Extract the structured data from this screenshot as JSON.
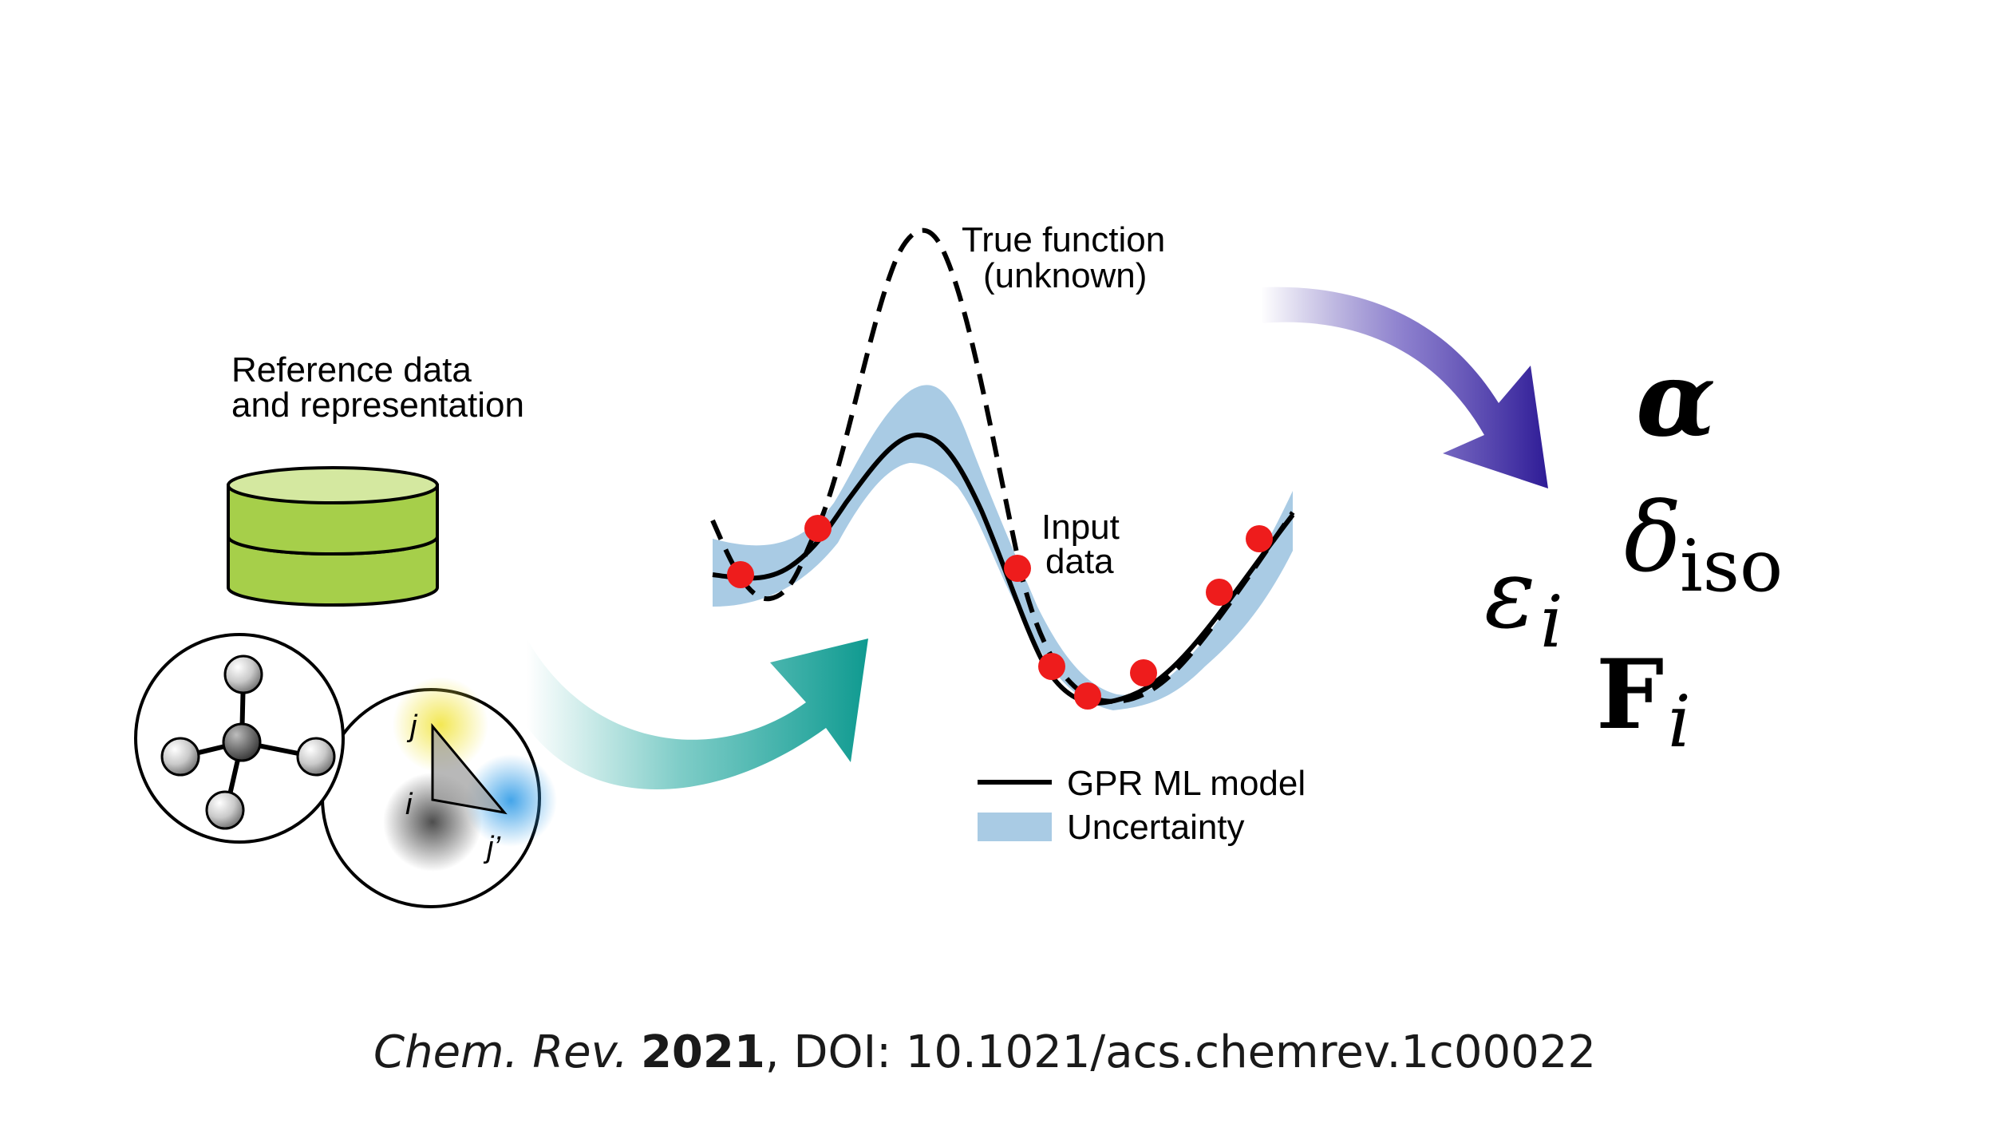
{
  "labels": {
    "reference_line1": "Reference data",
    "reference_line2": "and representation",
    "true_function_line1": "True function",
    "true_function_line2": "(unknown)",
    "input_data_line1": "Input",
    "input_data_line2": "data",
    "legend_model": "GPR ML model",
    "legend_uncertainty": "Uncertainty",
    "atom_j": "j",
    "atom_i": "i",
    "atom_jprime": "j’"
  },
  "properties": {
    "alpha": "α",
    "delta": "δ",
    "delta_sub": "iso",
    "epsilon": "ε",
    "epsilon_sub": "i",
    "force": "F",
    "force_sub": "i"
  },
  "citation": {
    "journal": "Chem. Rev.",
    "year": "2021",
    "rest": ", DOI: 10.1021/acs.chemrev.1c00022"
  },
  "colors": {
    "database_green": "#a6cf4a",
    "database_top": "#d4e8a0",
    "uncertainty_blue": "#a9cbe4",
    "input_red": "#ee1c1c",
    "teal_arrow": "#15a39a",
    "purple_arrow": "#3d2a9f",
    "atom_gray": "#7a7a7a"
  }
}
